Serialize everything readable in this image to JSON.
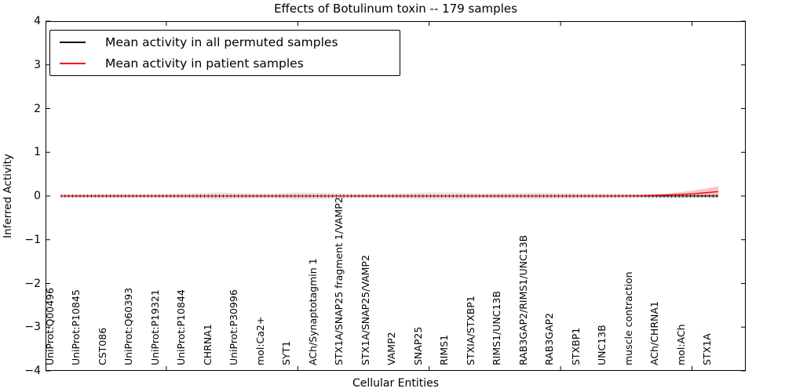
{
  "chart_data": {
    "type": "line",
    "title": "Effects of Botulinum toxin -- 179 samples",
    "xlabel": "Cellular Entities",
    "ylabel": "Inferred Activity",
    "ylim": [
      -4,
      4
    ],
    "yticks": [
      4,
      3,
      2,
      1,
      0,
      -1,
      -2,
      -3,
      -4
    ],
    "grid": false,
    "legend_position": "upper left",
    "categories": [
      "UniProt:Q00496",
      "UniProt:P10845",
      "CST086",
      "UniProt:Q60393",
      "UniProt:P19321",
      "UniProt:P10844",
      "CHRNA1",
      "UniProt:P30996",
      "mol:Ca2+",
      "SYT1",
      "ACh/Synaptotagmin 1",
      "STX1A/SNAP25 fragment 1/VAMP2",
      "STX1A/SNAP25/VAMP2",
      "VAMP2",
      "SNAP25",
      "RIMS1",
      "STXIA/STXBP1",
      "RIMS1/UNC13B",
      "RAB3GAP2/RIMS1/UNC13B",
      "RAB3GAP2",
      "STXBP1",
      "UNC13B",
      "muscle contraction",
      "ACh/CHRNA1",
      "mol:ACh",
      "STX1A"
    ],
    "series": [
      {
        "name": "Mean activity in all permuted samples",
        "color": "#000000",
        "values": [
          0,
          0,
          0,
          0,
          0,
          0,
          0,
          0,
          0,
          0,
          0,
          0,
          0,
          0,
          0,
          0,
          0,
          0,
          0,
          0,
          0,
          0,
          0,
          0,
          0,
          0
        ]
      },
      {
        "name": "Mean activity in patient samples",
        "color": "#ff0000",
        "values": [
          0,
          0,
          0,
          0,
          0,
          0,
          0,
          0,
          0,
          0,
          0,
          0,
          0,
          0,
          0,
          0,
          0,
          0,
          0,
          0,
          0,
          0,
          0.005,
          0.02,
          0.05,
          0.1
        ]
      }
    ],
    "permuted_band_halfwidth": [
      0.04,
      0.04,
      0.05,
      0.04,
      0.05,
      0.06,
      0.08,
      0.06,
      0.05,
      0.08,
      0.07,
      0.05,
      0.045,
      0.06,
      0.08,
      0.08,
      0.055,
      0.065,
      0.075,
      0.065,
      0.055,
      0.05,
      0.045,
      0.055,
      0.05,
      0.04
    ],
    "patient_band_upper": [
      0.01,
      0.01,
      0.01,
      0.01,
      0.01,
      0.01,
      0.01,
      0.01,
      0.01,
      0.01,
      0.01,
      0.01,
      0.01,
      0.01,
      0.01,
      0.01,
      0.01,
      0.01,
      0.01,
      0.01,
      0.01,
      0.01,
      0.02,
      0.05,
      0.12,
      0.22
    ],
    "patient_band_lower": [
      -0.01,
      -0.01,
      -0.01,
      -0.01,
      -0.01,
      -0.01,
      -0.01,
      -0.01,
      -0.01,
      -0.01,
      -0.01,
      -0.01,
      -0.01,
      -0.01,
      -0.01,
      -0.01,
      -0.01,
      -0.01,
      -0.01,
      -0.01,
      -0.01,
      -0.01,
      -0.01,
      0,
      0,
      0.02
    ]
  }
}
